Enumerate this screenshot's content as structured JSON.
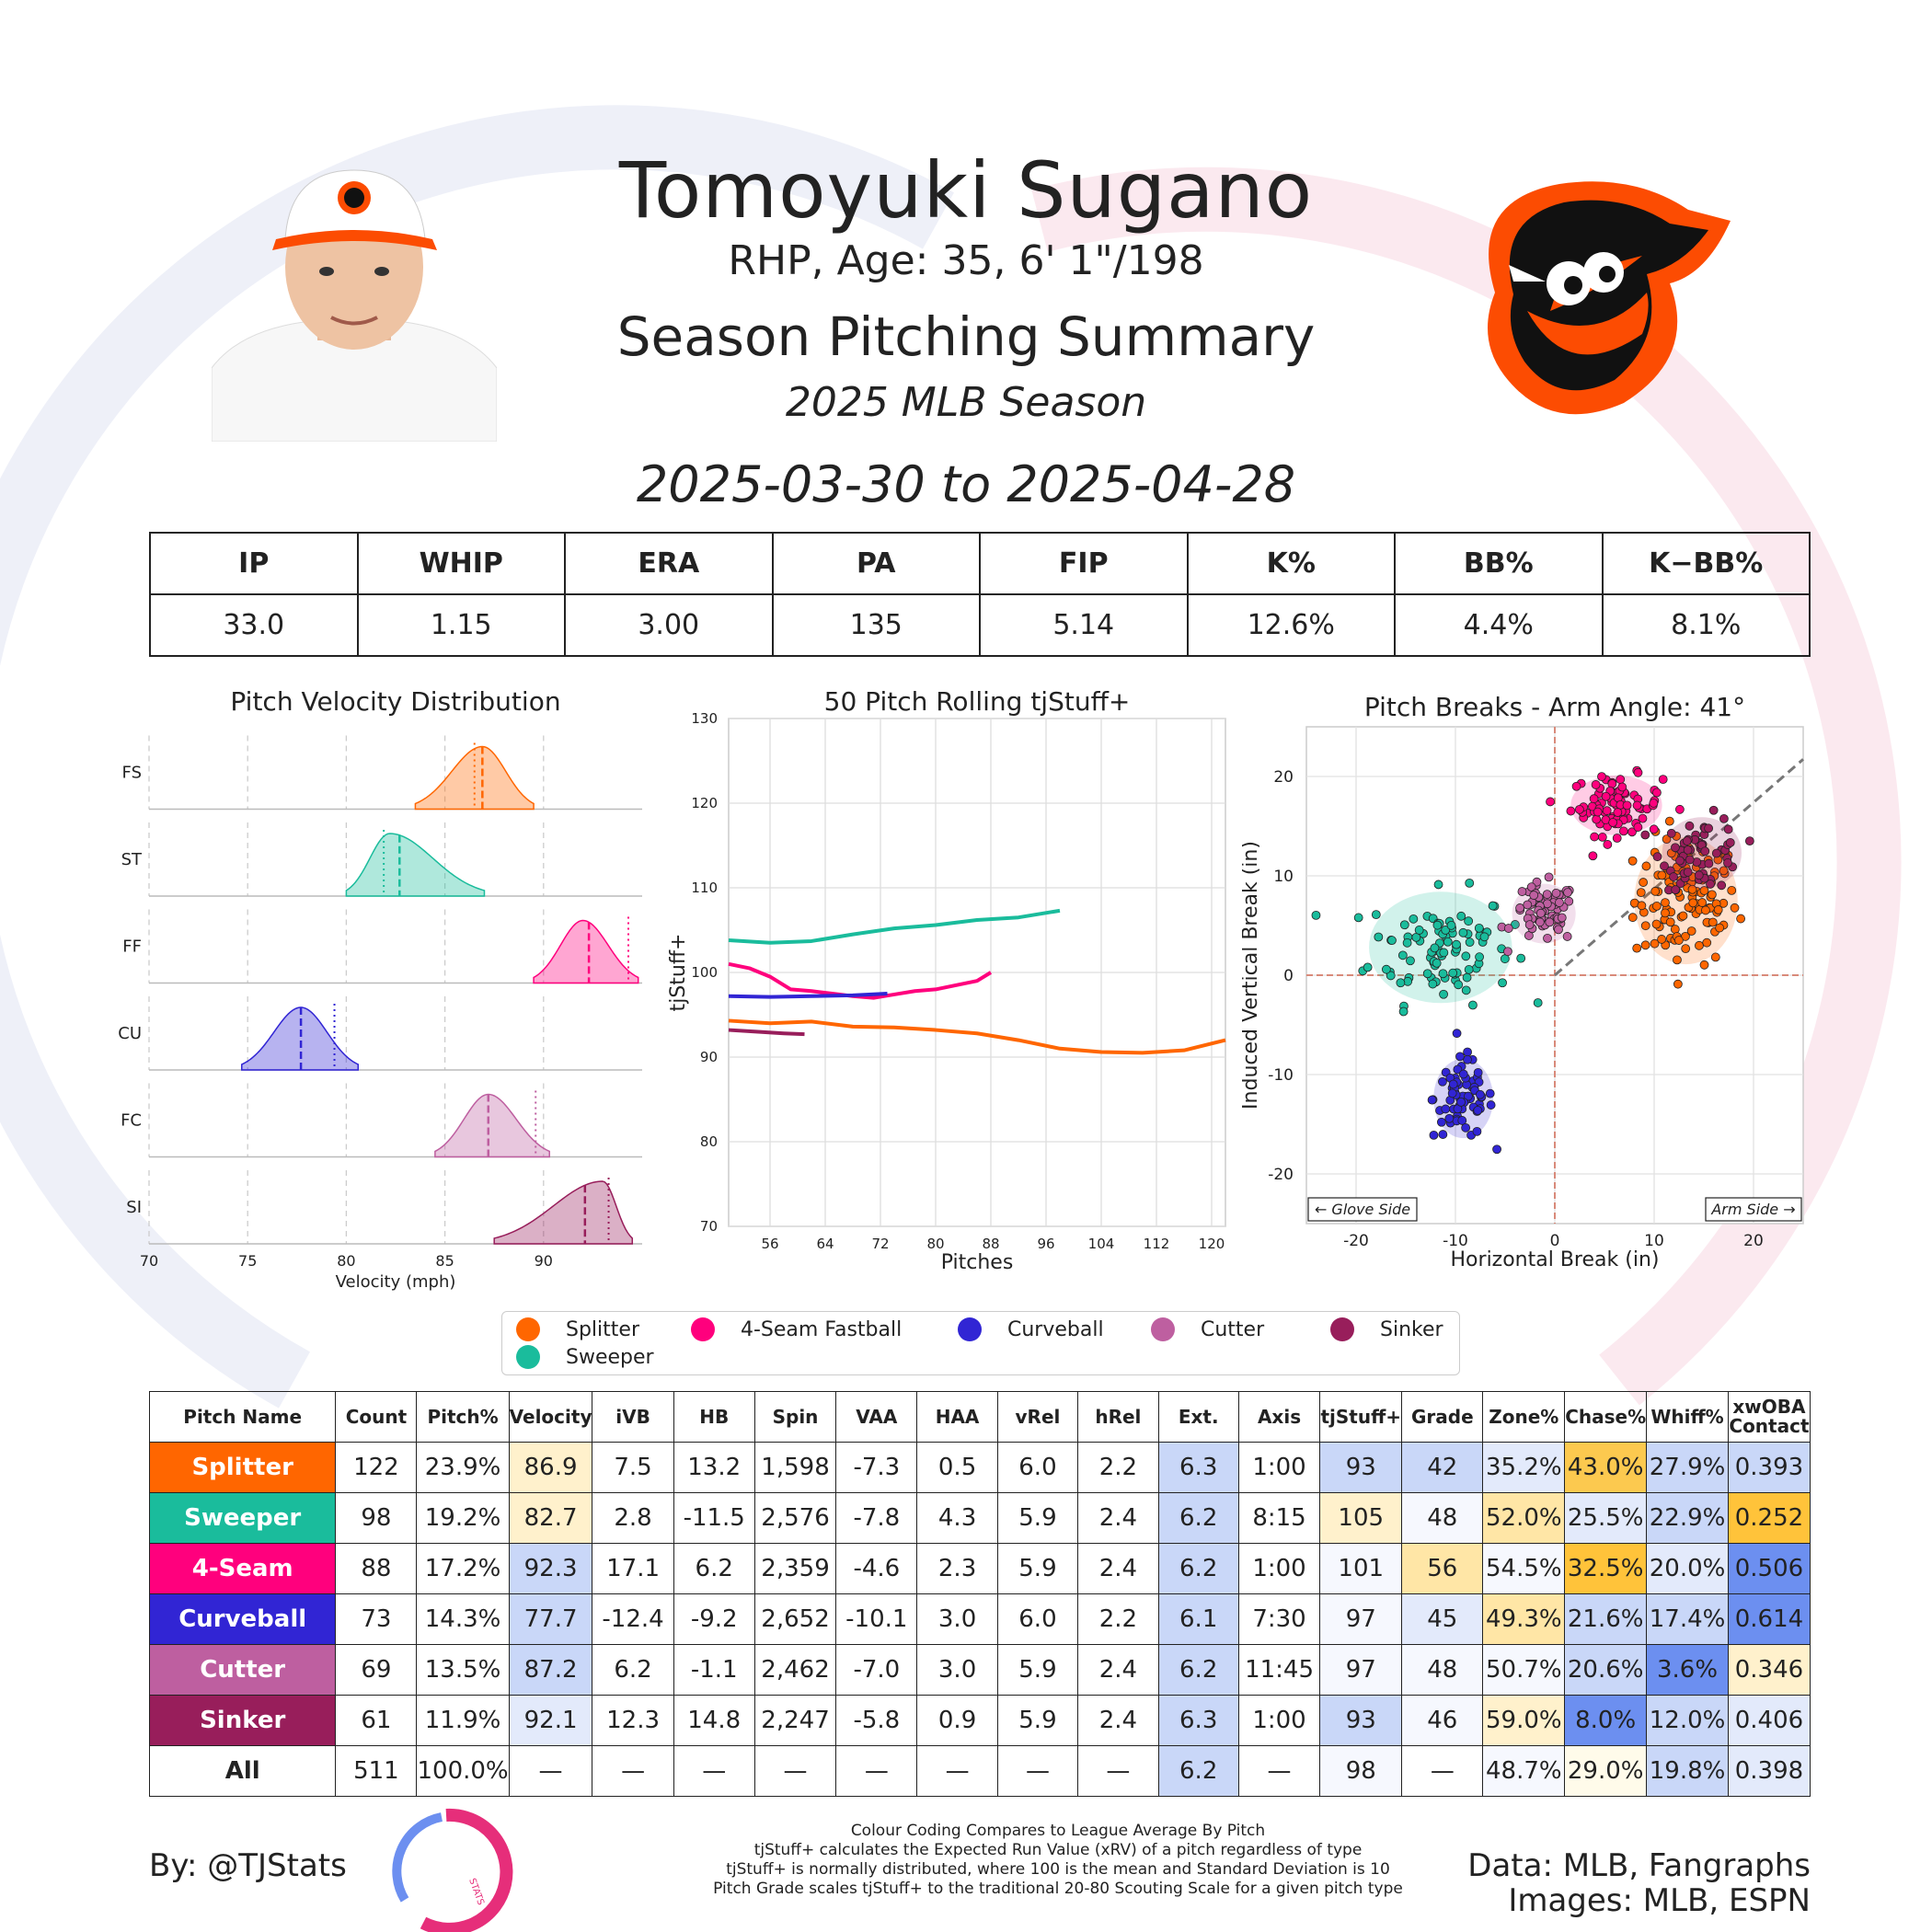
{
  "header": {
    "name": "Tomoyuki Sugano",
    "bio": "RHP, Age: 35, 6' 1\"/198",
    "summary_title": "Season Pitching Summary",
    "season": "2025 MLB Season",
    "date_range": "2025-03-30 to 2025-04-28"
  },
  "stats": {
    "headers": [
      "IP",
      "WHIP",
      "ERA",
      "PA",
      "FIP",
      "K%",
      "BB%",
      "K−BB%"
    ],
    "values": [
      "33.0",
      "1.15",
      "3.00",
      "135",
      "5.14",
      "12.6%",
      "4.4%",
      "8.1%"
    ]
  },
  "pitches": [
    {
      "code": "FS",
      "name": "Splitter",
      "short": "Splitter",
      "color": "#FF6600"
    },
    {
      "code": "ST",
      "name": "Sweeper",
      "short": "Sweeper",
      "color": "#1ABC9C"
    },
    {
      "code": "FF",
      "name": "4-Seam Fastball",
      "short": "4-Seam",
      "color": "#FF007D"
    },
    {
      "code": "CU",
      "name": "Curveball",
      "short": "Curveball",
      "color": "#3125D4"
    },
    {
      "code": "FC",
      "name": "Cutter",
      "short": "Cutter",
      "color": "#BE5FA0"
    },
    {
      "code": "SI",
      "name": "Sinker",
      "short": "Sinker",
      "color": "#981E5B"
    }
  ],
  "legend_order": [
    "Splitter",
    "4-Seam Fastball",
    "Curveball",
    "Cutter",
    "Sinker",
    "Sweeper"
  ],
  "chart_data": [
    {
      "type": "area",
      "title": "Pitch Velocity Distribution",
      "xlabel": "Velocity (mph)",
      "xlim": [
        70,
        95
      ],
      "xticks": [
        70,
        75,
        80,
        85,
        90
      ],
      "series": [
        {
          "name": "FS",
          "range": [
            83.5,
            89.5
          ],
          "peak": 86.9,
          "mean": 86.9,
          "league_mean": 86.5
        },
        {
          "name": "ST",
          "range": [
            80.0,
            87.0
          ],
          "peak": 82.2,
          "mean": 82.7,
          "league_mean": 81.9
        },
        {
          "name": "FF",
          "range": [
            89.5,
            94.8
          ],
          "peak": 92.0,
          "mean": 92.3,
          "league_mean": 94.3
        },
        {
          "name": "CU",
          "range": [
            74.7,
            80.6
          ],
          "peak": 77.7,
          "mean": 77.7,
          "league_mean": 79.4
        },
        {
          "name": "FC",
          "range": [
            84.5,
            90.3
          ],
          "peak": 87.2,
          "mean": 87.2,
          "league_mean": 89.6
        },
        {
          "name": "SI",
          "range": [
            87.5,
            94.5
          ],
          "peak": 93.0,
          "mean": 92.1,
          "league_mean": 93.3
        }
      ]
    },
    {
      "type": "line",
      "title": "50 Pitch Rolling tjStuff+",
      "xlabel": "Pitches",
      "ylabel": "tjStuff+",
      "xlim": [
        50,
        122
      ],
      "ylim": [
        70,
        130
      ],
      "xticks": [
        56,
        64,
        72,
        80,
        88,
        96,
        104,
        112,
        120
      ],
      "yticks": [
        70,
        80,
        90,
        100,
        110,
        120,
        130
      ],
      "series": [
        {
          "name": "Sweeper",
          "x": [
            50,
            56,
            62,
            68,
            74,
            80,
            86,
            92,
            98
          ],
          "y": [
            103.8,
            103.5,
            103.7,
            104.5,
            105.2,
            105.6,
            106.2,
            106.5,
            107.3
          ]
        },
        {
          "name": "4-Seam Fastball",
          "x": [
            50,
            53,
            56,
            59,
            62,
            65,
            68,
            71,
            74,
            77,
            80,
            83,
            86,
            88
          ],
          "y": [
            101.0,
            100.5,
            99.5,
            98.0,
            97.8,
            97.5,
            97.2,
            97.0,
            97.4,
            97.8,
            98.0,
            98.5,
            99.0,
            100.0
          ]
        },
        {
          "name": "Curveball",
          "x": [
            50,
            56,
            62,
            68,
            73
          ],
          "y": [
            97.2,
            97.1,
            97.2,
            97.3,
            97.5
          ]
        },
        {
          "name": "Splitter",
          "x": [
            50,
            56,
            62,
            68,
            74,
            80,
            86,
            92,
            98,
            104,
            110,
            116,
            122
          ],
          "y": [
            94.3,
            94.0,
            94.2,
            93.6,
            93.5,
            93.2,
            92.8,
            92.0,
            91.0,
            90.6,
            90.5,
            90.8,
            92.0
          ]
        },
        {
          "name": "Sinker",
          "x": [
            50,
            54,
            58,
            61
          ],
          "y": [
            93.2,
            93.0,
            92.8,
            92.7
          ]
        }
      ]
    },
    {
      "type": "scatter",
      "title": "Pitch Breaks - Arm Angle: 41°",
      "xlabel": "Horizontal Break (in)",
      "ylabel": "Induced Vertical Break (in)",
      "xlim": [
        -25,
        25
      ],
      "ylim": [
        -25,
        25
      ],
      "xticks": [
        -20,
        -10,
        0,
        10,
        20
      ],
      "yticks": [
        -20,
        -10,
        0,
        10,
        20
      ],
      "annotations": [
        "← Glove Side",
        "Arm Side →"
      ],
      "series": [
        {
          "name": "Splitter",
          "center": [
            13.2,
            7.5
          ],
          "spread": [
            2.6,
            3.2
          ],
          "count": 122
        },
        {
          "name": "Sweeper",
          "center": [
            -11.5,
            2.8
          ],
          "spread": [
            3.6,
            2.8
          ],
          "count": 98
        },
        {
          "name": "4-Seam Fastball",
          "center": [
            6.2,
            17.1
          ],
          "spread": [
            2.3,
            1.5
          ],
          "count": 88
        },
        {
          "name": "Curveball",
          "center": [
            -9.2,
            -12.4
          ],
          "spread": [
            1.5,
            2.0
          ],
          "count": 73
        },
        {
          "name": "Cutter",
          "center": [
            -1.1,
            6.2
          ],
          "spread": [
            1.6,
            1.5
          ],
          "count": 69
        },
        {
          "name": "Sinker",
          "center": [
            14.8,
            12.3
          ],
          "spread": [
            2.0,
            1.8
          ],
          "count": 61
        }
      ]
    },
    {
      "type": "table",
      "columns": [
        "Pitch Name",
        "Count",
        "Pitch%",
        "Velocity",
        "iVB",
        "HB",
        "Spin",
        "VAA",
        "HAA",
        "vRel",
        "hRel",
        "Ext.",
        "Axis",
        "tjStuff+",
        "Grade",
        "Zone%",
        "Chase%",
        "Whiff%",
        "xwOBA Contact"
      ],
      "rows": [
        [
          "Splitter",
          "122",
          "23.9%",
          "86.9",
          "7.5",
          "13.2",
          "1,598",
          "-7.3",
          "0.5",
          "6.0",
          "2.2",
          "6.3",
          "1:00",
          "93",
          "42",
          "35.2%",
          "43.0%",
          "27.9%",
          "0.393"
        ],
        [
          "Sweeper",
          "98",
          "19.2%",
          "82.7",
          "2.8",
          "-11.5",
          "2,576",
          "-7.8",
          "4.3",
          "5.9",
          "2.4",
          "6.2",
          "8:15",
          "105",
          "48",
          "52.0%",
          "25.5%",
          "22.9%",
          "0.252"
        ],
        [
          "4-Seam",
          "88",
          "17.2%",
          "92.3",
          "17.1",
          "6.2",
          "2,359",
          "-4.6",
          "2.3",
          "5.9",
          "2.4",
          "6.2",
          "1:00",
          "101",
          "56",
          "54.5%",
          "32.5%",
          "20.0%",
          "0.506"
        ],
        [
          "Curveball",
          "73",
          "14.3%",
          "77.7",
          "-12.4",
          "-9.2",
          "2,652",
          "-10.1",
          "3.0",
          "6.0",
          "2.2",
          "6.1",
          "7:30",
          "97",
          "45",
          "49.3%",
          "21.6%",
          "17.4%",
          "0.614"
        ],
        [
          "Cutter",
          "69",
          "13.5%",
          "87.2",
          "6.2",
          "-1.1",
          "2,462",
          "-7.0",
          "3.0",
          "5.9",
          "2.4",
          "6.2",
          "11:45",
          "97",
          "48",
          "50.7%",
          "20.6%",
          "3.6%",
          "0.346"
        ],
        [
          "Sinker",
          "61",
          "11.9%",
          "92.1",
          "12.3",
          "14.8",
          "2,247",
          "-5.8",
          "0.9",
          "5.9",
          "2.4",
          "6.3",
          "1:00",
          "93",
          "46",
          "59.0%",
          "8.0%",
          "12.0%",
          "0.406"
        ],
        [
          "All",
          "511",
          "100.0%",
          "—",
          "—",
          "—",
          "—",
          "—",
          "—",
          "—",
          "—",
          "6.2",
          "—",
          "98",
          "—",
          "48.7%",
          "29.0%",
          "19.8%",
          "0.398"
        ]
      ],
      "cell_colors": [
        [
          "",
          "",
          "",
          "#FFF1CC",
          "",
          "",
          "",
          "",
          "",
          "",
          "",
          "#C9D7F8",
          "",
          "#C9D7F8",
          "#C9D7F8",
          "#E3EAFB",
          "#FCC94F",
          "#C9D7F8",
          "#C9D7F8"
        ],
        [
          "",
          "",
          "",
          "#FFF1CC",
          "",
          "",
          "",
          "",
          "",
          "",
          "",
          "#C9D7F8",
          "",
          "#FFF1CC",
          "#F6F8FE",
          "#FFE6A6",
          "#E3EAFB",
          "#C9D7F8",
          "#FFC33A"
        ],
        [
          "",
          "",
          "",
          "#C9D7F8",
          "",
          "",
          "",
          "",
          "",
          "",
          "",
          "#C9D7F8",
          "",
          "#F6F8FE",
          "#FFE6A6",
          "#F6F8FE",
          "#FFC33A",
          "#E3EAFB",
          "#6C8FF0"
        ],
        [
          "",
          "",
          "",
          "#C9D7F8",
          "",
          "",
          "",
          "",
          "",
          "",
          "",
          "#C9D7F8",
          "",
          "#F6F8FE",
          "#E3EAFB",
          "#FFE6A6",
          "#C9D7F8",
          "#C9D7F8",
          "#6C8FF0"
        ],
        [
          "",
          "",
          "",
          "#C9D7F8",
          "",
          "",
          "",
          "",
          "",
          "",
          "",
          "#C9D7F8",
          "",
          "#F6F8FE",
          "#F6F8FE",
          "#F6F8FE",
          "#C9D7F8",
          "#6C8FF0",
          "#FFF1CC"
        ],
        [
          "",
          "",
          "",
          "#E3EAFB",
          "",
          "",
          "",
          "",
          "",
          "",
          "",
          "#C9D7F8",
          "",
          "#C9D7F8",
          "#F6F8FE",
          "#FFF1CC",
          "#6C8FF0",
          "#C9D7F8",
          "#E3EAFB"
        ],
        [
          "",
          "",
          "",
          "",
          "",
          "",
          "",
          "",
          "",
          "",
          "",
          "#C9D7F8",
          "",
          "#F6F8FE",
          "",
          "#F6F8FE",
          "#FFFBEA",
          "#C9D7F8",
          "#E3EAFB"
        ]
      ]
    }
  ],
  "footer": {
    "author": "By: @TJStats",
    "source1": "Data: MLB, Fangraphs",
    "source2": "Images: MLB, ESPN",
    "notes": [
      "Colour Coding Compares to League Average By Pitch",
      "tjStuff+ calculates the Expected Run Value (xRV) of a pitch regardless of type",
      "tjStuff+ is normally distributed, where 100 is the mean and Standard Deviation is 10",
      "Pitch Grade scales tjStuff+ to the traditional 20-80 Scouting Scale for a given pitch type"
    ],
    "logo_text": "STATS"
  },
  "colors": {
    "oriole_orange": "#FC4C02",
    "oriole_black": "#000000"
  }
}
